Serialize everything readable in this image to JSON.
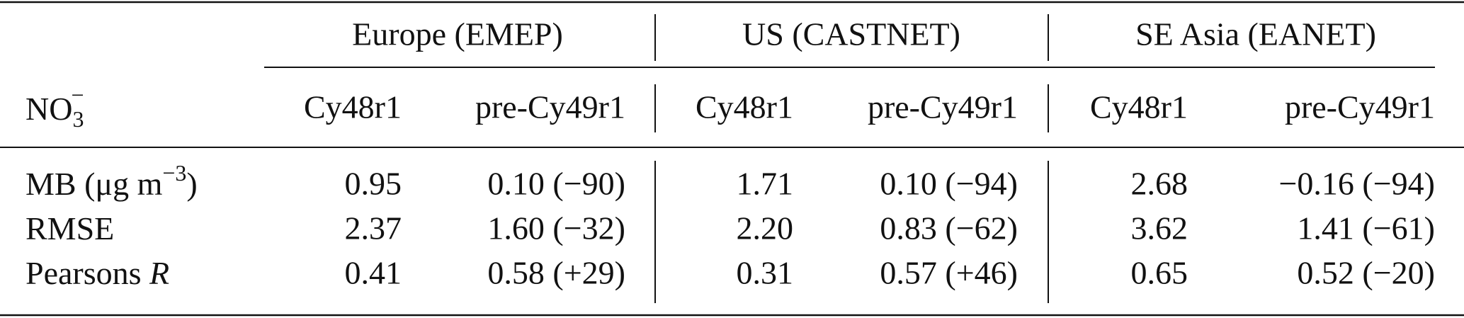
{
  "table": {
    "group_headers": [
      "Europe (EMEP)",
      "US (CASTNET)",
      "SE Asia (EANET)"
    ],
    "corner": {
      "text": "NO",
      "sub": "3",
      "sup": "−"
    },
    "columns": [
      "Cy48r1",
      "pre-Cy49r1",
      "Cy48r1",
      "pre-Cy49r1",
      "Cy48r1",
      "pre-Cy49r1"
    ],
    "rows": [
      {
        "label": {
          "text": "MB (μg m",
          "sup": "−3",
          "tail": ")"
        },
        "cells": [
          "0.95",
          "0.10 (−90)",
          "1.71",
          "0.10 (−94)",
          "2.68",
          "−0.16 (−94)"
        ]
      },
      {
        "label": {
          "text": "RMSE"
        },
        "cells": [
          "2.37",
          "1.60 (−32)",
          "2.20",
          "0.83 (−62)",
          "3.62",
          "1.41 (−61)"
        ]
      },
      {
        "label": {
          "text": "Pearsons ",
          "italic": "R"
        },
        "cells": [
          "0.41",
          "0.58 (+29)",
          "0.31",
          "0.57 (+46)",
          "0.65",
          "0.52 (−20)"
        ]
      }
    ]
  }
}
